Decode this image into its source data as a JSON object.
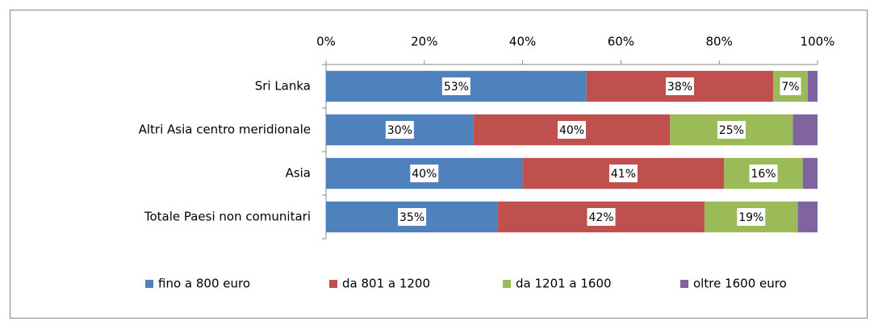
{
  "chart_data": {
    "type": "stacked-bar-horizontal",
    "categories": [
      "Sri Lanka",
      "Altri Asia centro meridionale",
      "Asia",
      "Totale Paesi non comunitari"
    ],
    "series": [
      {
        "name": "fino a 800 euro",
        "color": "#4f81bd",
        "values": [
          53,
          30,
          40,
          35
        ],
        "value_labels": [
          "53%",
          "30%",
          "40%",
          "35%"
        ]
      },
      {
        "name": "da 801 a 1200",
        "color": "#c0504d",
        "values": [
          38,
          40,
          41,
          42
        ],
        "value_labels": [
          "38%",
          "40%",
          "41%",
          "42%"
        ]
      },
      {
        "name": "da 1201 a 1600",
        "color": "#9bbb59",
        "values": [
          7,
          25,
          16,
          19
        ],
        "value_labels": [
          "7%",
          "25%",
          "16%",
          "19%"
        ]
      },
      {
        "name": "oltre 1600 euro",
        "color": "#8064a2",
        "values": [
          2,
          5,
          3,
          4
        ]
      }
    ],
    "xlim": [
      0,
      100
    ],
    "xticks": [
      {
        "value": 0,
        "label": "0%"
      },
      {
        "value": 20,
        "label": "20%"
      },
      {
        "value": 40,
        "label": "40%"
      },
      {
        "value": 60,
        "label": "60%"
      },
      {
        "value": 80,
        "label": "80%"
      },
      {
        "value": 100,
        "label": "100%"
      }
    ],
    "legend": "bottom"
  }
}
